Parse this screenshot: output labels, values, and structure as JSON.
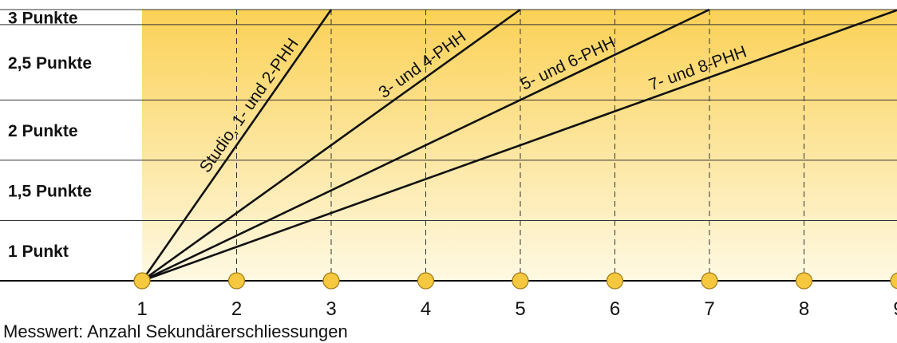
{
  "chart_data": {
    "type": "line",
    "xlabel": "Messwert: Anzahl Sekundärerschliessungen",
    "x_ticks": [
      1,
      2,
      3,
      4,
      5,
      6,
      7,
      8,
      9
    ],
    "x_tick_labels": [
      "1",
      "2",
      "3",
      "4",
      "5",
      "6",
      "7",
      "8",
      "9"
    ],
    "xlim": [
      1,
      9
    ],
    "ylim": [
      0.75,
      3
    ],
    "y_bands": [
      {
        "label": "3 Punkte",
        "from": 2.875,
        "to": 3.0
      },
      {
        "label": "2,5 Punkte",
        "from": 2.25,
        "to": 2.875
      },
      {
        "label": "2 Punkte",
        "from": 1.75,
        "to": 2.25
      },
      {
        "label": "1,5 Punkte",
        "from": 1.25,
        "to": 1.75
      },
      {
        "label": "1 Punkt",
        "from": 0.75,
        "to": 1.25
      }
    ],
    "band_boundaries": [
      1.25,
      1.75,
      2.25,
      2.875
    ],
    "grid": {
      "vertical_dashed": true,
      "horizontal_solid": true
    },
    "series": [
      {
        "name": "Studio, 1- und 2-PHH",
        "points": [
          [
            1,
            0.75
          ],
          [
            3,
            3.0
          ]
        ]
      },
      {
        "name": "3- und 4-PHH",
        "points": [
          [
            1,
            0.75
          ],
          [
            5,
            3.0
          ]
        ]
      },
      {
        "name": "5- und 6-PHH",
        "points": [
          [
            1,
            0.75
          ],
          [
            7,
            3.0
          ]
        ]
      },
      {
        "name": "7- und 8-PHH",
        "points": [
          [
            1,
            0.75
          ],
          [
            9,
            3.0
          ]
        ]
      }
    ],
    "colors": {
      "band_top": "#fbd156",
      "band_bottom": "#fef9e3",
      "marker_fill": "#f6c840",
      "marker_stroke": "#a07a14",
      "line": "#111111"
    }
  }
}
